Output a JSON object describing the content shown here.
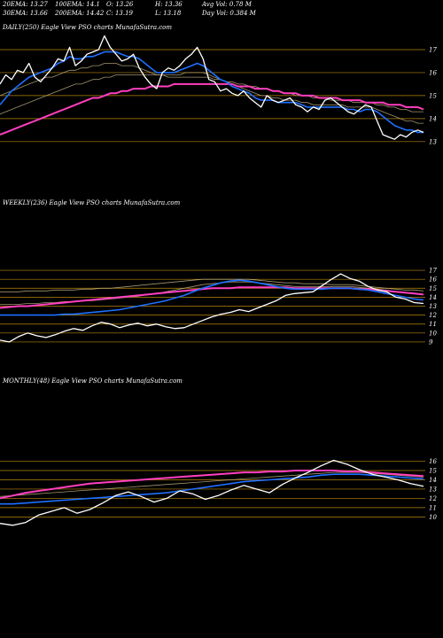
{
  "header": {
    "row1": [
      "20EMA: 13.27",
      "100EMA: 14.1",
      "O: 13.26",
      "H: 13.36",
      "Avg Vol: 0.78  M"
    ],
    "row2": [
      "30EMA: 13.66",
      "200EMA: 14.42",
      "C: 13.19",
      "L: 13.18",
      "Day Vol: 0.384 M"
    ]
  },
  "colors": {
    "background": "#000000",
    "gridline": "#b8860b",
    "price": "#ffffff",
    "ema_blue": "#1e6fff",
    "ema_magenta": "#ff3fbf",
    "ema_dim": "#c9b98a"
  },
  "chart_data": [
    {
      "type": "line",
      "title": "DAILY(250) Eagle  View  PSO charts MunafaSutra.com",
      "y_ticks": [
        17,
        16,
        15,
        14,
        13
      ],
      "ylim": [
        12.3,
        18
      ],
      "grid": true,
      "series": [
        {
          "role": "price",
          "values": [
            15.5,
            15.9,
            15.7,
            16.1,
            16.0,
            16.4,
            15.8,
            15.6,
            15.9,
            16.2,
            16.6,
            16.5,
            17.1,
            16.3,
            16.5,
            16.8,
            16.9,
            17.0,
            17.6,
            17.1,
            16.8,
            16.5,
            16.6,
            16.8,
            16.2,
            15.8,
            15.5,
            15.3,
            16.0,
            16.2,
            16.1,
            16.3,
            16.6,
            16.8,
            17.1,
            16.6,
            15.7,
            15.6,
            15.2,
            15.3,
            15.1,
            15.0,
            15.2,
            14.9,
            14.7,
            14.5,
            15.0,
            14.8,
            14.7,
            14.8,
            14.9,
            14.6,
            14.5,
            14.3,
            14.5,
            14.4,
            14.8,
            14.9,
            14.7,
            14.5,
            14.3,
            14.2,
            14.4,
            14.6,
            14.5,
            13.9,
            13.3,
            13.2,
            13.1,
            13.3,
            13.2,
            13.4,
            13.5,
            13.4
          ]
        },
        {
          "role": "ema-blue",
          "values": [
            14.6,
            14.9,
            15.2,
            15.4,
            15.6,
            15.8,
            15.9,
            16.0,
            16.1,
            16.2,
            16.4,
            16.5,
            16.7,
            16.6,
            16.6,
            16.7,
            16.7,
            16.8,
            16.9,
            16.9,
            16.9,
            16.8,
            16.7,
            16.7,
            16.6,
            16.4,
            16.2,
            16.0,
            16.0,
            16.0,
            16.0,
            16.1,
            16.2,
            16.3,
            16.4,
            16.3,
            16.1,
            15.9,
            15.7,
            15.6,
            15.4,
            15.3,
            15.2,
            15.1,
            14.9,
            14.8,
            14.8,
            14.8,
            14.7,
            14.7,
            14.7,
            14.7,
            14.6,
            14.5,
            14.5,
            14.5,
            14.5,
            14.5,
            14.5,
            14.5,
            14.4,
            14.4,
            14.3,
            14.4,
            14.4,
            14.3,
            14.1,
            13.9,
            13.7,
            13.6,
            13.5,
            13.5,
            13.4,
            13.4
          ]
        },
        {
          "role": "ema-dim",
          "values": [
            15.0,
            15.1,
            15.2,
            15.3,
            15.4,
            15.5,
            15.6,
            15.7,
            15.8,
            15.8,
            15.9,
            16.0,
            16.1,
            16.1,
            16.2,
            16.2,
            16.3,
            16.3,
            16.4,
            16.4,
            16.4,
            16.3,
            16.3,
            16.3,
            16.2,
            16.1,
            16.0,
            15.9,
            15.9,
            15.9,
            15.9,
            15.9,
            16.0,
            16.0,
            16.0,
            16.0,
            15.9,
            15.8,
            15.7,
            15.6,
            15.5,
            15.4,
            15.3,
            15.2,
            15.1,
            15.0,
            15.0,
            14.9,
            14.9,
            14.8,
            14.8,
            14.8,
            14.7,
            14.7,
            14.6,
            14.6,
            14.6,
            14.6,
            14.6,
            14.6,
            14.5,
            14.5,
            14.5,
            14.5,
            14.5,
            14.4,
            14.3,
            14.2,
            14.1,
            14.0,
            13.9,
            13.9,
            13.8,
            13.8
          ]
        },
        {
          "role": "ema-dim",
          "values": [
            14.2,
            14.3,
            14.4,
            14.5,
            14.6,
            14.7,
            14.8,
            14.9,
            15.0,
            15.1,
            15.2,
            15.3,
            15.4,
            15.5,
            15.5,
            15.6,
            15.7,
            15.7,
            15.8,
            15.8,
            15.9,
            15.9,
            15.9,
            15.9,
            15.9,
            15.9,
            15.9,
            15.9,
            15.9,
            15.8,
            15.8,
            15.8,
            15.8,
            15.8,
            15.8,
            15.8,
            15.8,
            15.7,
            15.7,
            15.6,
            15.6,
            15.5,
            15.5,
            15.4,
            15.4,
            15.3,
            15.3,
            15.2,
            15.2,
            15.1,
            15.1,
            15.0,
            15.0,
            15.0,
            14.9,
            14.9,
            14.9,
            14.8,
            14.8,
            14.8,
            14.8,
            14.7,
            14.7,
            14.7,
            14.7,
            14.6,
            14.6,
            14.5,
            14.5,
            14.4,
            14.4,
            14.3,
            14.3,
            14.3
          ]
        },
        {
          "role": "ema-magenta",
          "values": [
            13.3,
            13.4,
            13.5,
            13.6,
            13.7,
            13.8,
            13.9,
            14.0,
            14.1,
            14.2,
            14.3,
            14.4,
            14.5,
            14.6,
            14.7,
            14.8,
            14.9,
            14.9,
            15.0,
            15.1,
            15.1,
            15.2,
            15.2,
            15.3,
            15.3,
            15.3,
            15.4,
            15.4,
            15.4,
            15.4,
            15.5,
            15.5,
            15.5,
            15.5,
            15.5,
            15.5,
            15.5,
            15.5,
            15.5,
            15.5,
            15.5,
            15.4,
            15.4,
            15.4,
            15.3,
            15.3,
            15.3,
            15.2,
            15.2,
            15.1,
            15.1,
            15.1,
            15.0,
            15.0,
            15.0,
            14.9,
            14.9,
            14.9,
            14.9,
            14.8,
            14.8,
            14.8,
            14.8,
            14.7,
            14.7,
            14.7,
            14.7,
            14.6,
            14.6,
            14.6,
            14.5,
            14.5,
            14.5,
            14.4
          ]
        }
      ]
    },
    {
      "type": "line",
      "title": "WEEKLY(236) Eagle  View  PSO charts MunafaSutra.com",
      "y_ticks": [
        17,
        16,
        15,
        14,
        13,
        12,
        11,
        10,
        9
      ],
      "ylim": [
        8.4,
        17.5
      ],
      "grid": true,
      "series": [
        {
          "role": "price",
          "values": [
            9.2,
            9.0,
            9.6,
            10.0,
            9.7,
            9.5,
            9.8,
            10.2,
            10.5,
            10.3,
            10.8,
            11.2,
            11.0,
            10.6,
            10.9,
            11.1,
            10.8,
            11.0,
            10.7,
            10.5,
            10.6,
            11.0,
            11.4,
            11.8,
            12.1,
            12.3,
            12.6,
            12.4,
            12.8,
            13.2,
            13.6,
            14.2,
            14.4,
            14.5,
            14.6,
            15.3,
            16.0,
            16.6,
            16.1,
            15.8,
            15.2,
            14.8,
            14.6,
            14.0,
            13.8,
            13.4,
            13.3
          ]
        },
        {
          "role": "ema-blue",
          "values": [
            12.0,
            12.0,
            12.0,
            12.0,
            12.0,
            12.0,
            12.0,
            12.1,
            12.1,
            12.2,
            12.3,
            12.4,
            12.5,
            12.6,
            12.8,
            13.0,
            13.2,
            13.4,
            13.6,
            13.9,
            14.2,
            14.6,
            15.0,
            15.3,
            15.6,
            15.8,
            15.9,
            15.8,
            15.6,
            15.4,
            15.2,
            15.0,
            14.9,
            14.9,
            14.9,
            14.9,
            15.0,
            15.0,
            15.0,
            14.9,
            14.8,
            14.6,
            14.4,
            14.2,
            14.0,
            13.8,
            13.7
          ]
        },
        {
          "role": "ema-dim",
          "values": [
            13.2,
            13.2,
            13.2,
            13.3,
            13.3,
            13.4,
            13.4,
            13.5,
            13.5,
            13.6,
            13.6,
            13.7,
            13.8,
            13.9,
            14.0,
            14.1,
            14.3,
            14.4,
            14.6,
            14.8,
            15.0,
            15.2,
            15.4,
            15.5,
            15.6,
            15.7,
            15.7,
            15.7,
            15.6,
            15.5,
            15.4,
            15.3,
            15.2,
            15.2,
            15.2,
            15.2,
            15.2,
            15.2,
            15.2,
            15.1,
            15.0,
            14.9,
            14.8,
            14.6,
            14.5,
            14.4,
            14.3
          ]
        },
        {
          "role": "ema-dim",
          "values": [
            14.6,
            14.6,
            14.6,
            14.7,
            14.7,
            14.7,
            14.8,
            14.8,
            14.8,
            14.9,
            14.9,
            15.0,
            15.0,
            15.1,
            15.2,
            15.3,
            15.4,
            15.5,
            15.6,
            15.7,
            15.8,
            15.9,
            16.0,
            16.0,
            16.0,
            16.0,
            16.0,
            16.0,
            15.9,
            15.8,
            15.7,
            15.6,
            15.6,
            15.5,
            15.5,
            15.5,
            15.4,
            15.4,
            15.4,
            15.3,
            15.2,
            15.1,
            15.0,
            14.9,
            14.8,
            14.8,
            14.7
          ]
        },
        {
          "role": "ema-magenta",
          "values": [
            12.8,
            12.9,
            13.0,
            13.0,
            13.1,
            13.2,
            13.3,
            13.4,
            13.5,
            13.6,
            13.7,
            13.8,
            13.9,
            14.0,
            14.1,
            14.2,
            14.3,
            14.4,
            14.5,
            14.6,
            14.7,
            14.8,
            14.9,
            15.0,
            15.0,
            15.0,
            15.1,
            15.1,
            15.1,
            15.1,
            15.1,
            15.1,
            15.0,
            15.0,
            15.0,
            15.0,
            15.0,
            15.0,
            15.0,
            14.9,
            14.9,
            14.8,
            14.7,
            14.6,
            14.5,
            14.4,
            14.3
          ]
        }
      ]
    },
    {
      "type": "line",
      "title": "MONTHLY(48) Eagle  View  PSO charts MunafaSutra.com",
      "y_ticks": [
        16,
        15,
        14,
        13,
        12,
        11,
        10
      ],
      "ylim": [
        8.6,
        17.2
      ],
      "grid": true,
      "series": [
        {
          "role": "price",
          "values": [
            9.3,
            9.1,
            9.4,
            10.2,
            10.6,
            11.0,
            10.4,
            10.8,
            11.5,
            12.3,
            12.7,
            12.2,
            11.6,
            12.0,
            12.8,
            12.5,
            11.9,
            12.3,
            12.9,
            13.4,
            13.0,
            12.6,
            13.5,
            14.2,
            14.8,
            15.5,
            16.1,
            15.7,
            15.1,
            14.6,
            14.3,
            14.0,
            13.6,
            13.3
          ]
        },
        {
          "role": "ema-blue",
          "values": [
            11.4,
            11.4,
            11.5,
            11.6,
            11.7,
            11.8,
            11.9,
            12.0,
            12.1,
            12.2,
            12.3,
            12.4,
            12.5,
            12.6,
            12.8,
            13.0,
            13.2,
            13.4,
            13.6,
            13.8,
            13.9,
            14.0,
            14.1,
            14.2,
            14.3,
            14.5,
            14.6,
            14.6,
            14.6,
            14.5,
            14.4,
            14.3,
            14.2,
            14.1
          ]
        },
        {
          "role": "ema-dim",
          "values": [
            12.2,
            12.3,
            12.4,
            12.5,
            12.6,
            12.7,
            12.8,
            12.9,
            13.0,
            13.1,
            13.2,
            13.3,
            13.4,
            13.5,
            13.6,
            13.7,
            13.8,
            13.9,
            14.0,
            14.1,
            14.2,
            14.3,
            14.4,
            14.5,
            14.6,
            14.7,
            14.8,
            14.8,
            14.8,
            14.7,
            14.6,
            14.5,
            14.4,
            14.3
          ]
        },
        {
          "role": "ema-magenta",
          "values": [
            12.0,
            12.3,
            12.6,
            12.8,
            13.0,
            13.2,
            13.4,
            13.6,
            13.7,
            13.8,
            13.9,
            14.0,
            14.1,
            14.2,
            14.3,
            14.4,
            14.5,
            14.6,
            14.7,
            14.8,
            14.8,
            14.9,
            14.9,
            15.0,
            15.0,
            15.0,
            15.0,
            14.9,
            14.9,
            14.8,
            14.7,
            14.6,
            14.5,
            14.4
          ]
        }
      ]
    }
  ]
}
